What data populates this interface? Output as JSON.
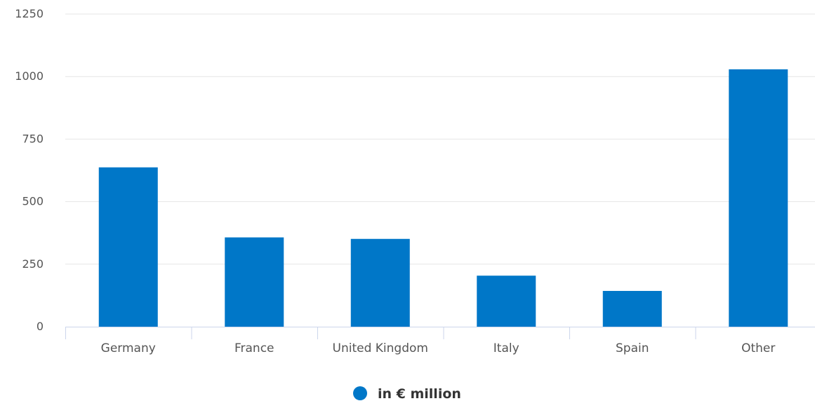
{
  "chart_data": {
    "type": "bar",
    "title": "",
    "xlabel": "",
    "ylabel": "",
    "categories": [
      "Germany",
      "France",
      "United Kingdom",
      "Italy",
      "Spain",
      "Other"
    ],
    "series": [
      {
        "name": "in € million",
        "values": [
          637,
          357,
          351,
          204,
          143,
          1029
        ]
      }
    ],
    "ylim": [
      0,
      1250
    ],
    "yticks": [
      0,
      250,
      500,
      750,
      1000,
      1250
    ],
    "grid": true,
    "legend": "bottom-center",
    "colors": {
      "bar": "#0077c8",
      "grid": "#e6e6e6",
      "axis": "#ccd6eb",
      "tick_text": "#555555",
      "legend_text": "#333333"
    }
  }
}
